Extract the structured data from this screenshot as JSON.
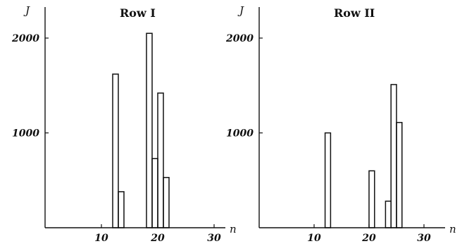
{
  "chart_data": [
    {
      "type": "bar",
      "title": "Row I",
      "xlabel": "n",
      "ylabel": "J",
      "xlim": [
        0,
        33
      ],
      "ylim": [
        0,
        2150
      ],
      "xticks": [
        "10",
        "20",
        "30"
      ],
      "yticks": [
        "1000",
        "2000"
      ],
      "bin_width": 1,
      "x": [
        12,
        13,
        18,
        19,
        20,
        21
      ],
      "values": [
        1620,
        380,
        2050,
        730,
        1420,
        530
      ]
    },
    {
      "type": "bar",
      "title": "Row II",
      "xlabel": "n",
      "ylabel": "J",
      "xlim": [
        0,
        33
      ],
      "ylim": [
        0,
        2150
      ],
      "xticks": [
        "10",
        "20",
        "30"
      ],
      "yticks": [
        "1000",
        "2000"
      ],
      "bin_width": 1,
      "x": [
        12,
        20,
        23,
        24,
        25
      ],
      "values": [
        1000,
        600,
        280,
        1510,
        1110
      ]
    }
  ]
}
